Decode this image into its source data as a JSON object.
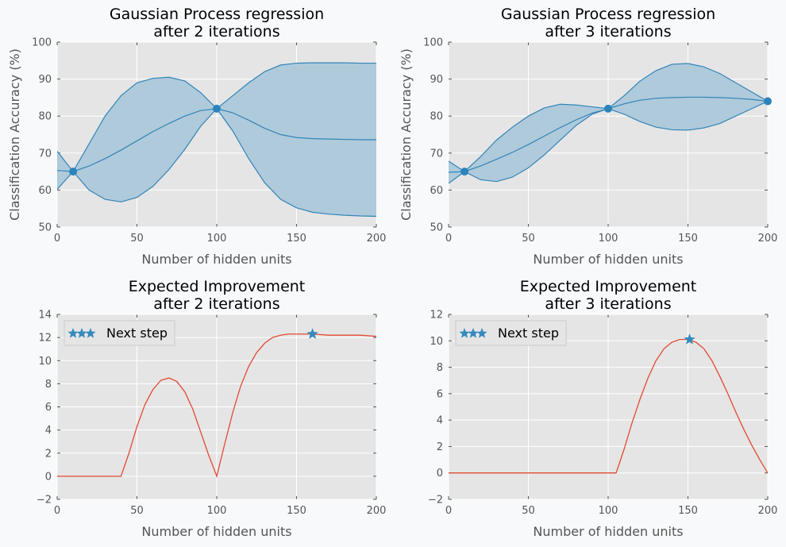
{
  "chart_data": [
    {
      "type": "area",
      "title": [
        "Gaussian Process regression",
        "after 2 iterations"
      ],
      "xlabel": "Number of hidden units",
      "ylabel": "Classification Accuracy (%)",
      "xlim": [
        0,
        200
      ],
      "ylim": [
        50,
        100
      ],
      "xticks": [
        0,
        50,
        100,
        150,
        200
      ],
      "yticks": [
        50,
        60,
        70,
        80,
        90,
        100
      ],
      "grid": true,
      "colors": {
        "line": "#3385b8",
        "fill": "#aecadb",
        "point": "#2b83ba"
      },
      "x": [
        0,
        10,
        20,
        30,
        40,
        50,
        60,
        70,
        80,
        90,
        100,
        110,
        120,
        130,
        140,
        150,
        160,
        170,
        180,
        190,
        200
      ],
      "mean": [
        65.3,
        65.0,
        66.5,
        68.5,
        70.8,
        73.3,
        75.8,
        78.0,
        80.0,
        81.5,
        82.0,
        80.9,
        78.9,
        76.7,
        75.0,
        74.2,
        73.9,
        73.8,
        73.7,
        73.6,
        73.6
      ],
      "upper": [
        70.5,
        65.0,
        72.5,
        80.0,
        85.5,
        89.0,
        90.2,
        90.5,
        89.5,
        86.3,
        82.0,
        85.5,
        89.0,
        92.0,
        93.8,
        94.3,
        94.4,
        94.4,
        94.4,
        94.3,
        94.3
      ],
      "lower": [
        60.2,
        65.0,
        60.0,
        57.5,
        56.8,
        58.0,
        61.0,
        65.5,
        71.0,
        77.3,
        82.0,
        76.0,
        68.5,
        62.0,
        57.5,
        55.2,
        54.0,
        53.5,
        53.2,
        53.0,
        52.9
      ],
      "observations": {
        "x": [
          10,
          100
        ],
        "y": [
          65.0,
          82.0
        ]
      }
    },
    {
      "type": "area",
      "title": [
        "Gaussian Process regression",
        "after 3 iterations"
      ],
      "xlabel": "Number of hidden units",
      "ylabel": "Classification Accuracy (%)",
      "xlim": [
        0,
        200
      ],
      "ylim": [
        50,
        100
      ],
      "xticks": [
        0,
        50,
        100,
        150,
        200
      ],
      "yticks": [
        50,
        60,
        70,
        80,
        90,
        100
      ],
      "grid": true,
      "colors": {
        "line": "#3385b8",
        "fill": "#aecadb",
        "point": "#2b83ba"
      },
      "x": [
        0,
        10,
        20,
        30,
        40,
        50,
        60,
        70,
        80,
        90,
        100,
        110,
        120,
        130,
        140,
        150,
        160,
        170,
        180,
        190,
        200
      ],
      "mean": [
        64.8,
        65.0,
        66.5,
        68.3,
        70.2,
        72.3,
        74.6,
        76.9,
        79.0,
        80.8,
        82.0,
        83.3,
        84.3,
        84.8,
        85.0,
        85.1,
        85.1,
        85.0,
        84.8,
        84.5,
        84.0
      ],
      "upper": [
        67.8,
        65.0,
        69.0,
        73.5,
        77.0,
        80.0,
        82.2,
        83.2,
        83.0,
        82.5,
        82.0,
        85.5,
        89.5,
        92.3,
        94.0,
        94.2,
        93.3,
        91.5,
        89.0,
        86.5,
        84.0
      ],
      "lower": [
        61.8,
        65.0,
        62.8,
        62.3,
        63.5,
        66.0,
        69.5,
        73.5,
        77.5,
        80.5,
        82.0,
        80.5,
        78.5,
        77.0,
        76.3,
        76.2,
        76.8,
        78.0,
        80.0,
        82.0,
        84.0
      ],
      "observations": {
        "x": [
          10,
          100,
          200
        ],
        "y": [
          65.0,
          82.0,
          84.0
        ]
      }
    },
    {
      "type": "line",
      "title": [
        "Expected Improvement",
        "after 2 iterations"
      ],
      "xlabel": "Number of hidden units",
      "ylabel": "",
      "xlim": [
        0,
        200
      ],
      "ylim": [
        -2,
        14
      ],
      "xticks": [
        0,
        50,
        100,
        150,
        200
      ],
      "yticks": [
        -2,
        0,
        2,
        4,
        6,
        8,
        10,
        12,
        14
      ],
      "grid": true,
      "colors": {
        "line": "#e24a33",
        "marker": "#348abd"
      },
      "x": [
        0,
        40,
        45,
        50,
        55,
        60,
        65,
        70,
        75,
        80,
        85,
        90,
        95,
        100,
        105,
        110,
        115,
        120,
        125,
        130,
        135,
        140,
        145,
        150,
        155,
        160,
        170,
        180,
        190,
        200
      ],
      "y": [
        0,
        0,
        2.0,
        4.3,
        6.2,
        7.5,
        8.3,
        8.5,
        8.2,
        7.3,
        5.8,
        3.8,
        1.8,
        0,
        2.8,
        5.5,
        7.8,
        9.5,
        10.7,
        11.5,
        12.0,
        12.2,
        12.3,
        12.3,
        12.3,
        12.3,
        12.2,
        12.2,
        12.2,
        12.1
      ],
      "next_step": {
        "x": 160,
        "y": 12.3
      },
      "legend": {
        "label": "Next step",
        "placement": "upper-left"
      }
    },
    {
      "type": "line",
      "title": [
        "Expected Improvement",
        "after 3 iterations"
      ],
      "xlabel": "Number of hidden units",
      "ylabel": "",
      "xlim": [
        0,
        200
      ],
      "ylim": [
        -2,
        12
      ],
      "xticks": [
        0,
        50,
        100,
        150,
        200
      ],
      "yticks": [
        -2,
        0,
        2,
        4,
        6,
        8,
        10,
        12
      ],
      "grid": true,
      "colors": {
        "line": "#e24a33",
        "marker": "#348abd"
      },
      "x": [
        0,
        105,
        110,
        115,
        120,
        125,
        130,
        135,
        140,
        145,
        150,
        155,
        160,
        165,
        170,
        175,
        180,
        185,
        190,
        195,
        200
      ],
      "y": [
        0,
        0,
        1.8,
        3.8,
        5.6,
        7.2,
        8.5,
        9.4,
        9.9,
        10.1,
        10.1,
        9.9,
        9.4,
        8.5,
        7.3,
        6.0,
        4.6,
        3.3,
        2.1,
        1.0,
        0.0
      ],
      "next_step": {
        "x": 151,
        "y": 10.1
      },
      "legend": {
        "label": "Next step",
        "placement": "upper-left"
      }
    }
  ]
}
